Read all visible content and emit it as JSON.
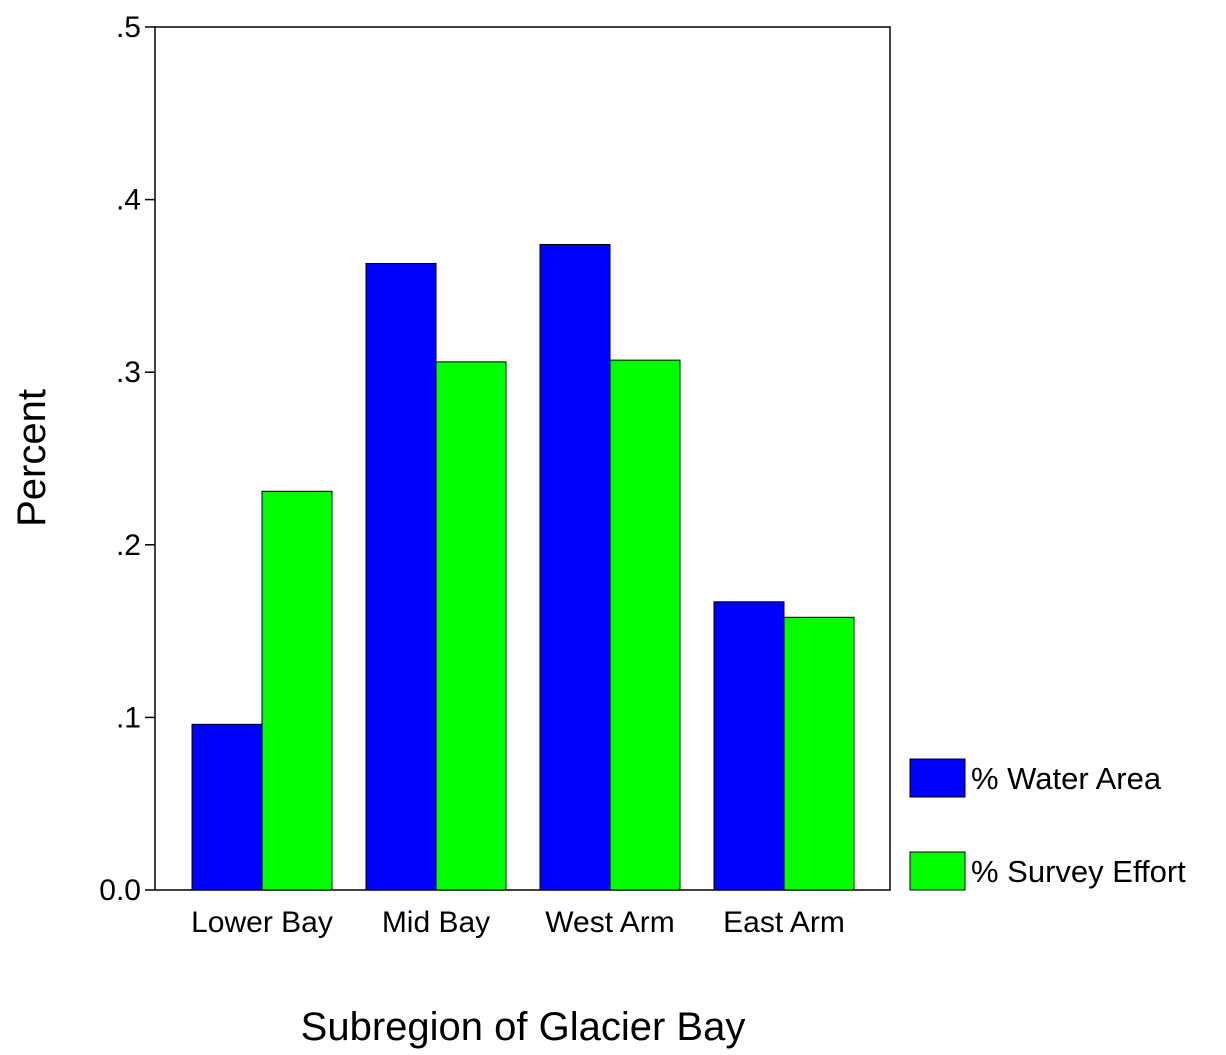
{
  "chart_data": {
    "type": "bar",
    "title": "",
    "xlabel": "Subregion of Glacier Bay",
    "ylabel": "Percent",
    "ylim": [
      0,
      0.5
    ],
    "yticks": [
      {
        "value": 0.0,
        "label": "0.0"
      },
      {
        "value": 0.1,
        "label": ".1"
      },
      {
        "value": 0.2,
        "label": ".2"
      },
      {
        "value": 0.3,
        "label": ".3"
      },
      {
        "value": 0.4,
        "label": ".4"
      },
      {
        "value": 0.5,
        "label": ".5"
      }
    ],
    "categories": [
      "Lower Bay",
      "Mid Bay",
      "West Arm",
      "East Arm"
    ],
    "series": [
      {
        "name": "% Water Area",
        "color": "#0000FF",
        "values": [
          0.096,
          0.363,
          0.374,
          0.167
        ]
      },
      {
        "name": "% Survey Effort",
        "color": "#00FF00",
        "values": [
          0.231,
          0.306,
          0.307,
          0.158
        ]
      }
    ],
    "grid": false,
    "legend": "right"
  }
}
